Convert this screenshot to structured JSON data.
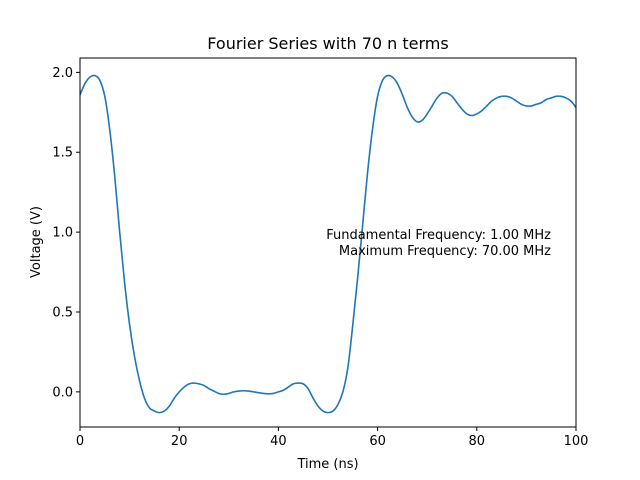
{
  "chart_data": {
    "type": "line",
    "title": "Fourier Series with 70 n terms",
    "xlabel": "Time (ns)",
    "ylabel": "Voltage (V)",
    "xlim": [
      0,
      100
    ],
    "ylim": [
      -0.22,
      2.09
    ],
    "xticks": [
      0,
      20,
      40,
      60,
      80,
      100
    ],
    "xtick_labels": [
      "0",
      "20",
      "40",
      "60",
      "80",
      "100"
    ],
    "yticks": [
      0.0,
      0.5,
      1.0,
      1.5,
      2.0
    ],
    "ytick_labels": [
      "0.0",
      "0.5",
      "1.0",
      "1.5",
      "2.0"
    ],
    "grid": false,
    "annotation": {
      "lines": [
        "Fundamental Frequency: 1.00 MHz",
        "Maximum Frequency: 70.00 MHz"
      ]
    },
    "series": [
      {
        "color": "#1f77b4",
        "x": [
          0,
          1,
          2,
          3,
          4,
          5,
          6,
          7,
          8,
          9,
          10,
          11,
          12,
          13,
          14,
          15,
          16,
          17,
          18,
          19,
          20,
          21,
          22,
          23,
          24,
          25,
          26,
          27,
          28,
          29,
          30,
          31,
          32,
          33,
          34,
          35,
          36,
          37,
          38,
          39,
          40,
          41,
          42,
          43,
          44,
          45,
          46,
          47,
          48,
          49,
          50,
          51,
          52,
          53,
          54,
          55,
          56,
          57,
          58,
          59,
          60,
          61,
          62,
          63,
          64,
          65,
          66,
          67,
          68,
          69,
          70,
          71,
          72,
          73,
          74,
          75,
          76,
          77,
          78,
          79,
          80,
          81,
          82,
          83,
          84,
          85,
          86,
          87,
          88,
          89,
          90,
          91,
          92,
          93,
          94,
          95,
          96,
          97,
          98,
          99,
          100
        ],
        "y": [
          1.86,
          1.93,
          1.97,
          1.98,
          1.95,
          1.85,
          1.64,
          1.35,
          1.0,
          0.68,
          0.42,
          0.22,
          0.07,
          -0.04,
          -0.1,
          -0.12,
          -0.13,
          -0.12,
          -0.09,
          -0.04,
          0.0,
          0.03,
          0.05,
          0.055,
          0.05,
          0.04,
          0.02,
          0.005,
          -0.01,
          -0.015,
          -0.01,
          0.0,
          0.005,
          0.007,
          0.005,
          0.0,
          -0.005,
          -0.01,
          -0.012,
          -0.01,
          0.0,
          0.01,
          0.03,
          0.05,
          0.055,
          0.05,
          0.02,
          -0.04,
          -0.09,
          -0.12,
          -0.13,
          -0.12,
          -0.08,
          0.0,
          0.15,
          0.42,
          0.72,
          1.05,
          1.38,
          1.65,
          1.85,
          1.95,
          1.98,
          1.97,
          1.93,
          1.86,
          1.78,
          1.72,
          1.69,
          1.7,
          1.74,
          1.79,
          1.84,
          1.87,
          1.87,
          1.85,
          1.81,
          1.77,
          1.74,
          1.73,
          1.74,
          1.76,
          1.79,
          1.82,
          1.84,
          1.85,
          1.85,
          1.84,
          1.82,
          1.8,
          1.79,
          1.79,
          1.8,
          1.81,
          1.83,
          1.84,
          1.85,
          1.85,
          1.84,
          1.82,
          1.78
        ]
      }
    ]
  }
}
